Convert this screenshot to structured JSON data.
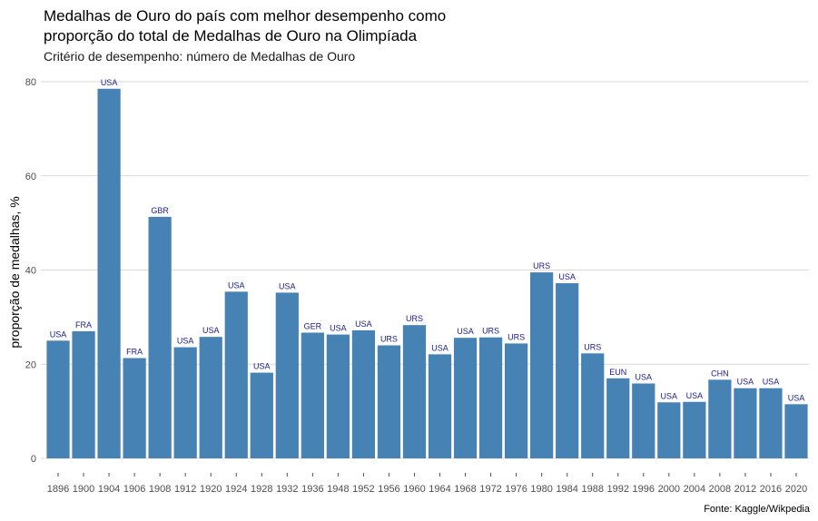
{
  "chart_data": {
    "type": "bar",
    "title_line1": "Medalhas de Ouro do país com melhor desempenho como",
    "title_line2": "proporção do total de Medalhas de Ouro na Olimpíada",
    "subtitle": "Critério de desempenho: número de Medalhas de Ouro",
    "ylabel": "proporção de medalhas, %",
    "caption": "Fonte: Kaggle/Wikpedia",
    "ylim": [
      0,
      80
    ],
    "yticks": [
      0,
      20,
      40,
      60,
      80
    ],
    "bar_color": "#4682b4",
    "label_color": "#1a1a8c",
    "categories": [
      "1896",
      "1900",
      "1904",
      "1906",
      "1908",
      "1912",
      "1920",
      "1924",
      "1928",
      "1932",
      "1936",
      "1948",
      "1952",
      "1956",
      "1960",
      "1964",
      "1968",
      "1972",
      "1976",
      "1980",
      "1984",
      "1988",
      "1992",
      "1996",
      "2000",
      "2004",
      "2008",
      "2012",
      "2016",
      "2020"
    ],
    "values": [
      25.0,
      27.0,
      78.5,
      21.3,
      51.3,
      23.6,
      25.8,
      35.4,
      18.2,
      35.2,
      26.7,
      26.3,
      27.2,
      24.0,
      28.3,
      22.1,
      25.6,
      25.7,
      24.4,
      39.5,
      37.2,
      22.3,
      17.0,
      15.9,
      11.9,
      12.0,
      16.7,
      14.9,
      14.9,
      11.5
    ],
    "labels": [
      "USA",
      "FRA",
      "USA",
      "FRA",
      "GBR",
      "USA",
      "USA",
      "USA",
      "USA",
      "USA",
      "GER",
      "USA",
      "USA",
      "URS",
      "URS",
      "USA",
      "USA",
      "URS",
      "URS",
      "URS",
      "USA",
      "URS",
      "EUN",
      "USA",
      "USA",
      "USA",
      "CHN",
      "USA",
      "USA",
      "USA"
    ]
  }
}
